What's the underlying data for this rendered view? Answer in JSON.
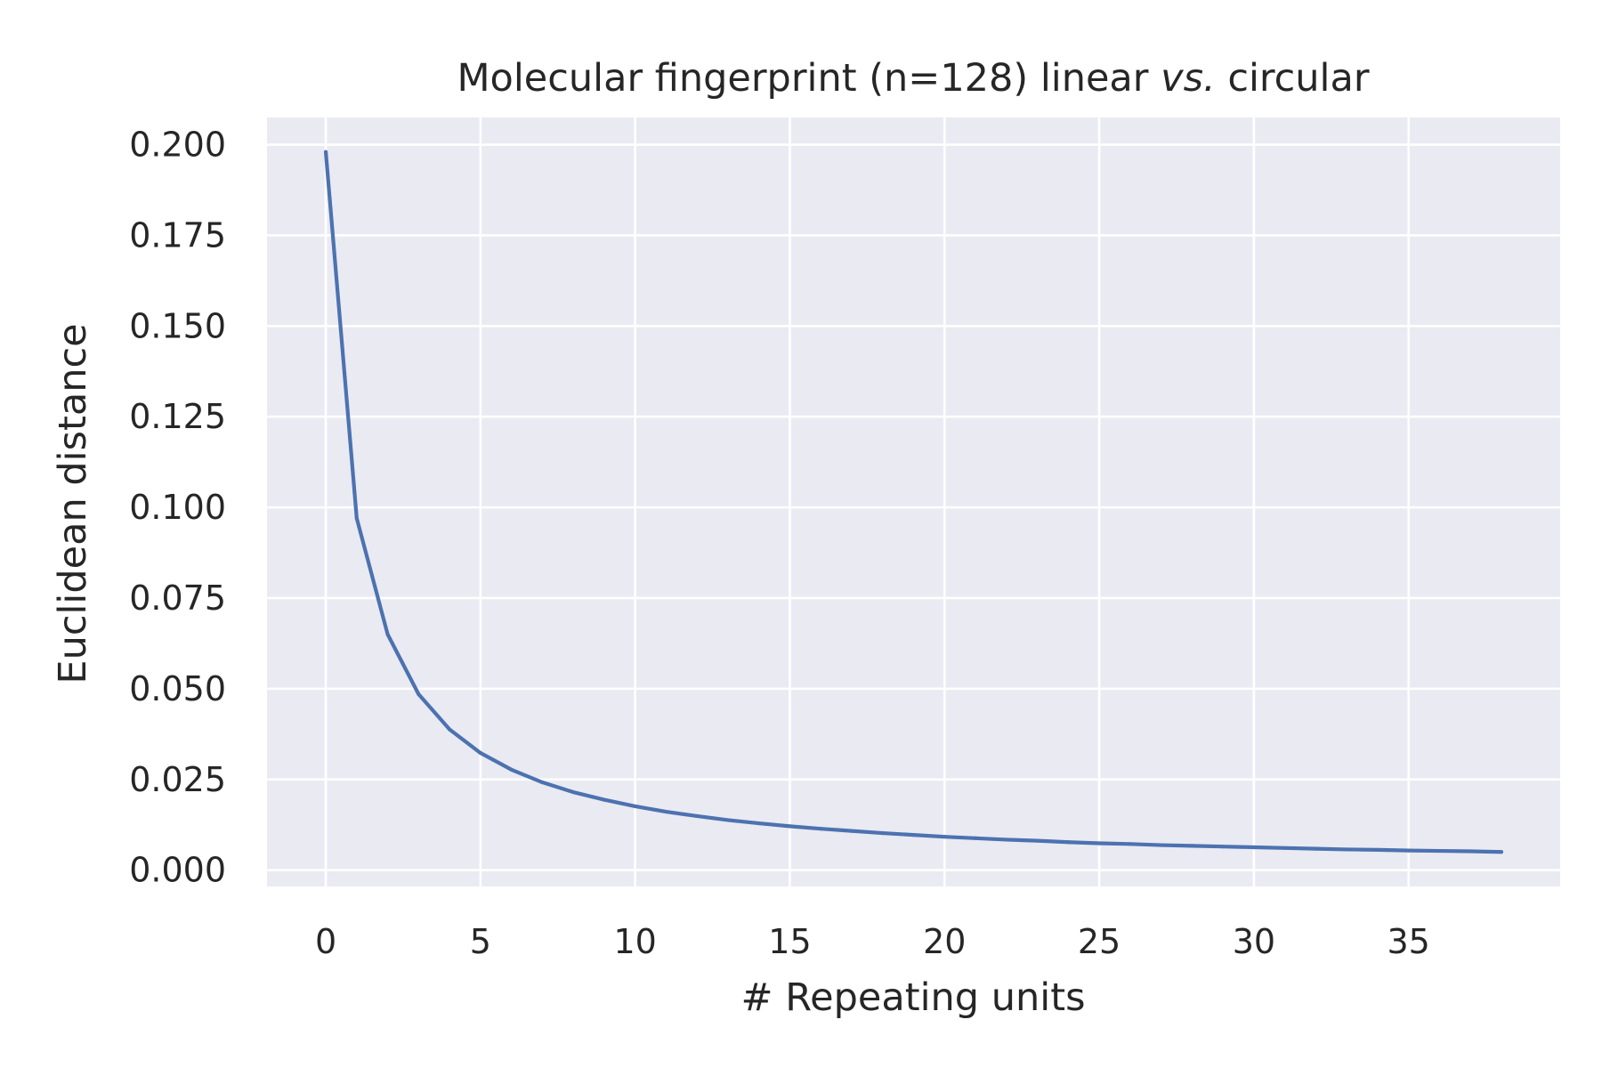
{
  "chart_data": {
    "type": "line",
    "title": {
      "prefix": "Molecular fingerprint (n=128) linear ",
      "italic": "vs.",
      "suffix": " circular"
    },
    "xlabel": "# Repeating units",
    "ylabel": "Euclidean distance",
    "xlim": [
      -1.9,
      39.9
    ],
    "ylim": [
      -0.0045,
      0.2075
    ],
    "xticks": [
      0,
      5,
      10,
      15,
      20,
      25,
      30,
      35
    ],
    "xtick_labels": [
      "0",
      "5",
      "10",
      "15",
      "20",
      "25",
      "30",
      "35"
    ],
    "yticks": [
      0.0,
      0.025,
      0.05,
      0.075,
      0.1,
      0.125,
      0.15,
      0.175,
      0.2
    ],
    "ytick_labels": [
      "0.000",
      "0.025",
      "0.050",
      "0.075",
      "0.100",
      "0.125",
      "0.150",
      "0.175",
      "0.200"
    ],
    "grid": true,
    "colors": {
      "background": "#eaeaf2",
      "grid": "#ffffff",
      "line": "#4c72b0",
      "text": "#262626"
    },
    "series": [
      {
        "x": [
          0,
          1,
          2,
          3,
          4,
          5,
          6,
          7,
          8,
          9,
          10,
          11,
          12,
          13,
          14,
          15,
          16,
          17,
          18,
          19,
          20,
          21,
          22,
          23,
          24,
          25,
          26,
          27,
          28,
          29,
          30,
          31,
          32,
          33,
          34,
          35,
          36,
          37,
          38
        ],
        "values": [
          0.198,
          0.097,
          0.065,
          0.0485,
          0.0388,
          0.0323,
          0.0277,
          0.0242,
          0.0215,
          0.0194,
          0.0176,
          0.0161,
          0.0149,
          0.0138,
          0.0129,
          0.0121,
          0.0114,
          0.0108,
          0.0102,
          0.0097,
          0.0092,
          0.0088,
          0.0084,
          0.0081,
          0.0077,
          0.0074,
          0.0072,
          0.0069,
          0.0067,
          0.0065,
          0.0063,
          0.0061,
          0.0059,
          0.0057,
          0.0056,
          0.0054,
          0.0053,
          0.0052,
          0.005
        ]
      }
    ]
  }
}
